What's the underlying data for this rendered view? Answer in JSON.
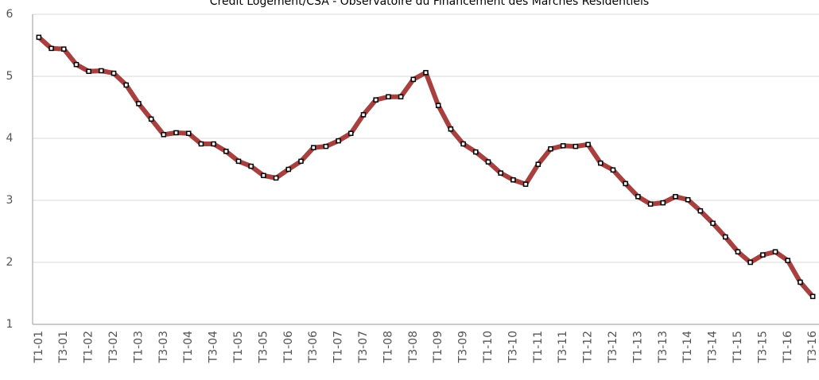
{
  "chart_data": {
    "type": "line",
    "title": "Crédit Logement/CSA - Observatoire du Financement des Marchés Résidentiels",
    "categories": [
      "T1-01",
      null,
      "T3-01",
      null,
      "T1-02",
      null,
      "T3-02",
      null,
      "T1-03",
      null,
      "T3-03",
      null,
      "T1-04",
      null,
      "T3-04",
      null,
      "T1-05",
      null,
      "T3-05",
      null,
      "T1-06",
      null,
      "T3-06",
      null,
      "T1-07",
      null,
      "T3-07",
      null,
      "T1-08",
      null,
      "T3-08",
      null,
      "T1-09",
      null,
      "T3-09",
      null,
      "T1-10",
      null,
      "T3-10",
      null,
      "T1-11",
      null,
      "T3-11",
      null,
      "T1-12",
      null,
      "T3-12",
      null,
      "T1-13",
      null,
      "T3-13",
      null,
      "T1-14",
      null,
      "T3-14",
      null,
      "T1-15",
      null,
      "T3-15",
      null,
      "T1-16",
      null,
      "T3-16"
    ],
    "series": [
      {
        "color": "#a8403f",
        "values": [
          5.63,
          5.45,
          5.44,
          5.19,
          5.08,
          5.09,
          5.05,
          4.86,
          4.56,
          4.31,
          4.06,
          4.09,
          4.08,
          3.91,
          3.91,
          3.79,
          3.63,
          3.55,
          3.4,
          3.36,
          3.5,
          3.63,
          3.85,
          3.87,
          3.96,
          4.08,
          4.38,
          4.62,
          4.67,
          4.67,
          4.95,
          5.06,
          4.53,
          4.15,
          3.91,
          3.78,
          3.62,
          3.44,
          3.33,
          3.26,
          3.58,
          3.83,
          3.88,
          3.87,
          3.9,
          3.6,
          3.49,
          3.27,
          3.06,
          2.94,
          2.96,
          3.06,
          3.01,
          2.83,
          2.63,
          2.41,
          2.17,
          2.0,
          2.12,
          2.17,
          2.03,
          1.68,
          1.45
        ]
      }
    ],
    "ylim": [
      1,
      6
    ],
    "yticks": [
      1,
      2,
      3,
      4,
      5,
      6
    ],
    "grid": true
  }
}
